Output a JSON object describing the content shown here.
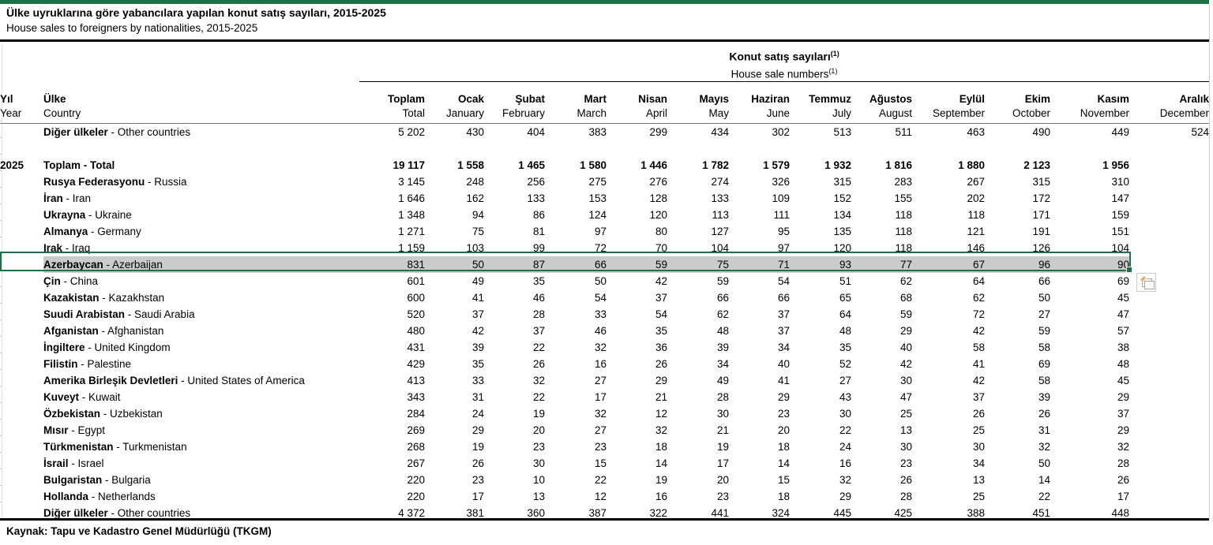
{
  "colors": {
    "accent_green": "#1e7145",
    "selection_green": "#1e7145",
    "highlight_gray": "#cbcbcb",
    "rule_black": "#000000"
  },
  "title": {
    "tr": "Ülke uyruklarına göre yabancılara yapılan konut satış sayıları, 2015-2025",
    "en": "House sales to foreigners by nationalities, 2015-2025"
  },
  "group_header": {
    "tr": "Konut satış sayıları",
    "en": "House sale numbers",
    "footnote_marker": "(1)"
  },
  "columns": {
    "year": {
      "tr": "Yıl",
      "en": "Year"
    },
    "country": {
      "tr": "Ülke",
      "en": "Country"
    },
    "values": [
      {
        "tr": "Toplam",
        "en": "Total"
      },
      {
        "tr": "Ocak",
        "en": "January"
      },
      {
        "tr": "Şubat",
        "en": "February"
      },
      {
        "tr": "Mart",
        "en": "March"
      },
      {
        "tr": "Nisan",
        "en": "April"
      },
      {
        "tr": "Mayıs",
        "en": "May"
      },
      {
        "tr": "Haziran",
        "en": "June"
      },
      {
        "tr": "Temmuz",
        "en": "July"
      },
      {
        "tr": "Ağustos",
        "en": "August"
      },
      {
        "tr": "Eylül",
        "en": "September"
      },
      {
        "tr": "Ekim",
        "en": "October"
      },
      {
        "tr": "Kasım",
        "en": "November"
      },
      {
        "tr": "Aralık",
        "en": "December"
      }
    ]
  },
  "rows": [
    {
      "type": "data",
      "year": "",
      "name_tr": "Diğer ülkeler",
      "name_en": "Other countries",
      "values": [
        "5 202",
        "430",
        "404",
        "383",
        "299",
        "434",
        "302",
        "513",
        "511",
        "463",
        "490",
        "449",
        "524"
      ]
    },
    {
      "type": "spacer"
    },
    {
      "type": "data",
      "year": "2025",
      "name_tr": "Toplam",
      "name_en": "Total",
      "bold_all": true,
      "values": [
        "19 117",
        "1 558",
        "1 465",
        "1 580",
        "1 446",
        "1 782",
        "1 579",
        "1 932",
        "1 816",
        "1 880",
        "2 123",
        "1 956",
        ""
      ]
    },
    {
      "type": "data",
      "year": "",
      "name_tr": "Rusya Federasyonu",
      "name_en": "Russia",
      "values": [
        "3 145",
        "248",
        "256",
        "275",
        "276",
        "274",
        "326",
        "315",
        "283",
        "267",
        "315",
        "310",
        ""
      ]
    },
    {
      "type": "data",
      "year": "",
      "name_tr": "İran",
      "name_en": "Iran",
      "values": [
        "1 646",
        "162",
        "133",
        "153",
        "128",
        "133",
        "109",
        "152",
        "155",
        "202",
        "172",
        "147",
        ""
      ]
    },
    {
      "type": "data",
      "year": "",
      "name_tr": "Ukrayna",
      "name_en": "Ukraine",
      "values": [
        "1 348",
        "94",
        "86",
        "124",
        "120",
        "113",
        "111",
        "134",
        "118",
        "118",
        "171",
        "159",
        ""
      ]
    },
    {
      "type": "data",
      "year": "",
      "name_tr": "Almanya",
      "name_en": "Germany",
      "values": [
        "1 271",
        "75",
        "81",
        "97",
        "80",
        "127",
        "95",
        "135",
        "118",
        "121",
        "191",
        "151",
        ""
      ]
    },
    {
      "type": "data",
      "year": "",
      "name_tr": "Irak",
      "name_en": "Iraq",
      "values": [
        "1 159",
        "103",
        "99",
        "72",
        "70",
        "104",
        "97",
        "120",
        "118",
        "146",
        "126",
        "104",
        ""
      ]
    },
    {
      "type": "data",
      "year": "",
      "name_tr": "Azerbaycan",
      "name_en": "Azerbaijan",
      "highlight": true,
      "values": [
        "831",
        "50",
        "87",
        "66",
        "59",
        "75",
        "71",
        "93",
        "77",
        "67",
        "96",
        "90",
        ""
      ]
    },
    {
      "type": "data",
      "year": "",
      "name_tr": "Çin",
      "name_en": "China",
      "values": [
        "601",
        "49",
        "35",
        "50",
        "42",
        "59",
        "54",
        "51",
        "62",
        "64",
        "66",
        "69",
        ""
      ]
    },
    {
      "type": "data",
      "year": "",
      "name_tr": "Kazakistan",
      "name_en": "Kazakhstan",
      "values": [
        "600",
        "41",
        "46",
        "54",
        "37",
        "66",
        "66",
        "65",
        "68",
        "62",
        "50",
        "45",
        ""
      ]
    },
    {
      "type": "data",
      "year": "",
      "name_tr": "Suudi Arabistan",
      "name_en": "Saudi Arabia",
      "values": [
        "520",
        "37",
        "28",
        "33",
        "54",
        "62",
        "37",
        "64",
        "59",
        "72",
        "27",
        "47",
        ""
      ]
    },
    {
      "type": "data",
      "year": "",
      "name_tr": "Afganistan",
      "name_en": "Afghanistan",
      "values": [
        "480",
        "42",
        "37",
        "46",
        "35",
        "48",
        "37",
        "48",
        "29",
        "42",
        "59",
        "57",
        ""
      ]
    },
    {
      "type": "data",
      "year": "",
      "name_tr": "İngiltere",
      "name_en": "United Kingdom",
      "values": [
        "431",
        "39",
        "22",
        "32",
        "36",
        "39",
        "34",
        "35",
        "40",
        "58",
        "58",
        "38",
        ""
      ]
    },
    {
      "type": "data",
      "year": "",
      "name_tr": "Filistin",
      "name_en": "Palestine",
      "values": [
        "429",
        "35",
        "26",
        "16",
        "26",
        "34",
        "40",
        "52",
        "42",
        "41",
        "69",
        "48",
        ""
      ]
    },
    {
      "type": "data",
      "year": "",
      "name_tr": "Amerika Birleşik Devletleri",
      "name_en": "United States of America",
      "values": [
        "413",
        "33",
        "32",
        "27",
        "29",
        "49",
        "41",
        "27",
        "30",
        "42",
        "58",
        "45",
        ""
      ]
    },
    {
      "type": "data",
      "year": "",
      "name_tr": "Kuveyt",
      "name_en": "Kuwait",
      "values": [
        "343",
        "31",
        "22",
        "17",
        "21",
        "28",
        "29",
        "43",
        "47",
        "37",
        "39",
        "29",
        ""
      ]
    },
    {
      "type": "data",
      "year": "",
      "name_tr": "Özbekistan",
      "name_en": "Uzbekistan",
      "values": [
        "284",
        "24",
        "19",
        "32",
        "12",
        "30",
        "23",
        "30",
        "25",
        "26",
        "26",
        "37",
        ""
      ]
    },
    {
      "type": "data",
      "year": "",
      "name_tr": "Mısır",
      "name_en": "Egypt",
      "values": [
        "269",
        "29",
        "20",
        "27",
        "32",
        "21",
        "20",
        "22",
        "13",
        "25",
        "31",
        "29",
        ""
      ]
    },
    {
      "type": "data",
      "year": "",
      "name_tr": "Türkmenistan",
      "name_en": "Turkmenistan",
      "values": [
        "268",
        "19",
        "23",
        "23",
        "18",
        "19",
        "18",
        "24",
        "30",
        "30",
        "32",
        "32",
        ""
      ]
    },
    {
      "type": "data",
      "year": "",
      "name_tr": "İsrail",
      "name_en": "Israel",
      "values": [
        "267",
        "26",
        "30",
        "15",
        "14",
        "17",
        "14",
        "16",
        "23",
        "34",
        "50",
        "28",
        ""
      ]
    },
    {
      "type": "data",
      "year": "",
      "name_tr": "Bulgaristan",
      "name_en": "Bulgaria",
      "values": [
        "220",
        "23",
        "10",
        "22",
        "19",
        "20",
        "15",
        "32",
        "26",
        "13",
        "14",
        "26",
        ""
      ]
    },
    {
      "type": "data",
      "year": "",
      "name_tr": "Hollanda",
      "name_en": "Netherlands",
      "values": [
        "220",
        "17",
        "13",
        "12",
        "16",
        "23",
        "18",
        "29",
        "28",
        "25",
        "22",
        "17",
        ""
      ]
    },
    {
      "type": "data",
      "year": "",
      "name_tr": "Diğer ülkeler",
      "name_en": "Other countries",
      "values": [
        "4 372",
        "381",
        "360",
        "387",
        "322",
        "441",
        "324",
        "445",
        "425",
        "388",
        "451",
        "448",
        ""
      ]
    }
  ],
  "footer": {
    "source": "Kaynak: Tapu ve Kadastro Genel Müdürlüğü (TKGM)"
  }
}
